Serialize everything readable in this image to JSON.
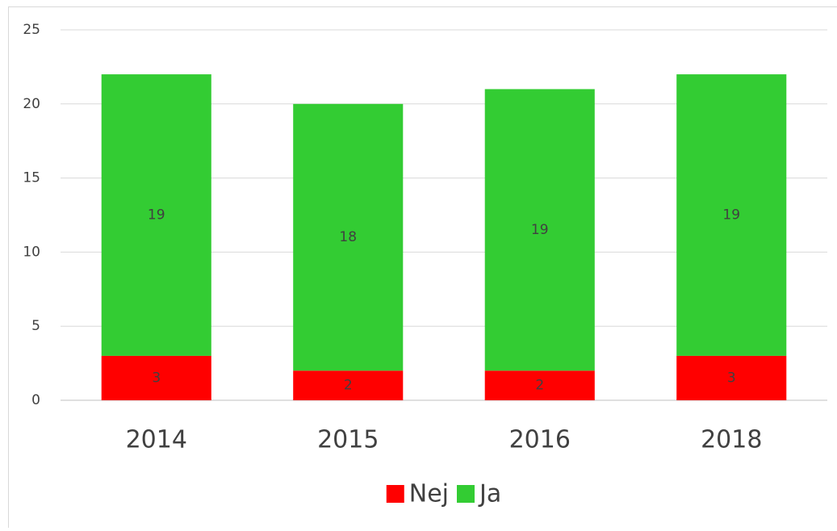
{
  "chart_data": {
    "type": "stacked_bar",
    "categories": [
      "2014",
      "2015",
      "2016",
      "2018"
    ],
    "series": [
      {
        "name": "Nej",
        "color": "#ff0000",
        "values": [
          3,
          2,
          2,
          3
        ]
      },
      {
        "name": "Ja",
        "color": "#33cc33",
        "values": [
          19,
          18,
          19,
          19
        ]
      }
    ],
    "ylim": [
      0,
      25
    ],
    "yticks": [
      0,
      5,
      10,
      15,
      20,
      25
    ],
    "grid": true,
    "legend": "bottom"
  }
}
